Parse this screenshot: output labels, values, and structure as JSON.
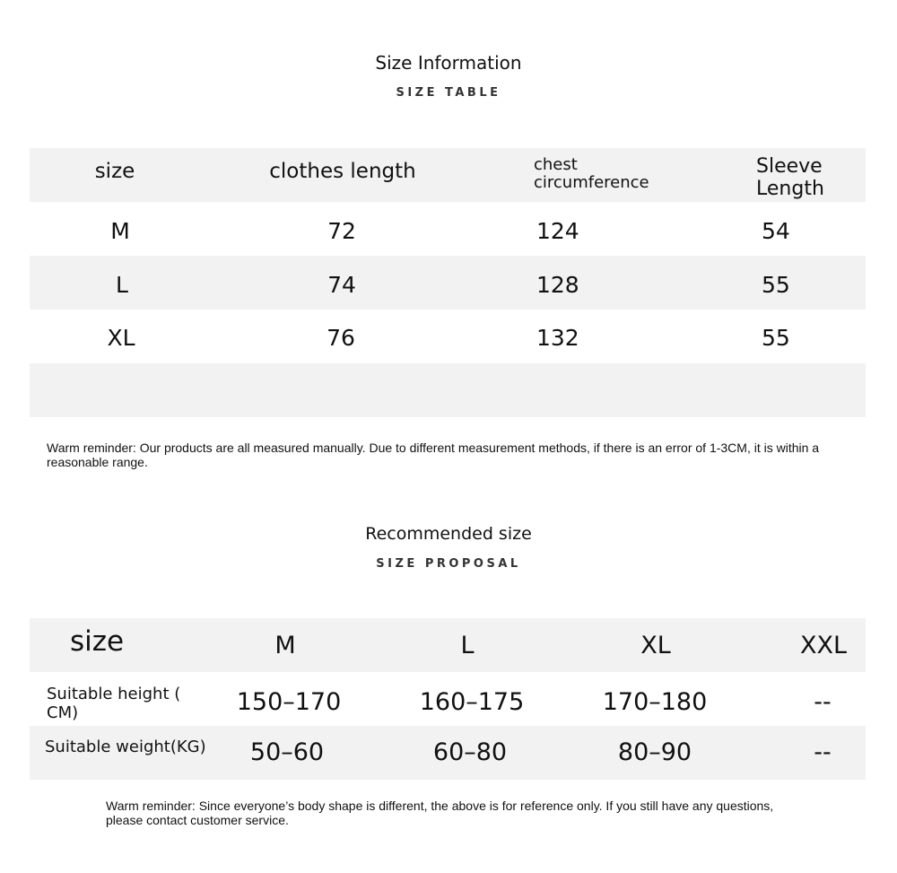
{
  "info": {
    "title": "Size Information",
    "subtitle": "SIZE TABLE",
    "headers": [
      "size",
      "clothes length",
      "chest circumference",
      "Sleeve Length"
    ],
    "rows": [
      [
        "M",
        "72",
        "124",
        "54"
      ],
      [
        "L",
        "74",
        "128",
        "55"
      ],
      [
        "XL",
        "76",
        "132",
        "55"
      ]
    ],
    "note": "Warm reminder: Our products are all measured manually. Due to different measurement methods, if there is an error of 1-3CM, it is within a reasonable range."
  },
  "proposal": {
    "title": "Recommended size",
    "subtitle": "SIZE PROPOSAL",
    "headers": [
      "size",
      "M",
      "L",
      "XL",
      "XXL"
    ],
    "rows": [
      [
        "Suitable height ( CM)",
        "150–170",
        "160–175",
        "170–180",
        "--"
      ],
      [
        "Suitable weight(KG)",
        "50–60",
        "60–80",
        "80–90",
        "--"
      ]
    ],
    "note": "Warm reminder: Since everyone’s body shape is different, the above is for reference only. If you still have any questions, please contact customer service."
  },
  "colors": {
    "band": "#f2f2f2",
    "text": "#111111"
  }
}
